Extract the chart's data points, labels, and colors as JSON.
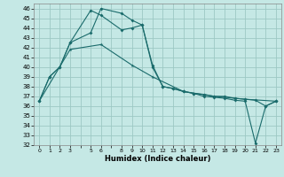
{
  "xlabel": "Humidex (Indice chaleur)",
  "background_color": "#c5e8e5",
  "grid_color": "#9dc8c4",
  "line_color": "#1a6b6b",
  "xlim": [
    -0.5,
    23.5
  ],
  "ylim": [
    32,
    46.5
  ],
  "yticks": [
    32,
    33,
    34,
    35,
    36,
    37,
    38,
    39,
    40,
    41,
    42,
    43,
    44,
    45,
    46
  ],
  "xtick_labels": [
    "0",
    "1",
    "2",
    "3",
    "",
    "5",
    "6",
    "",
    "8",
    "9",
    "10",
    "11",
    "12",
    "13",
    "14",
    "15",
    "16",
    "17",
    "18",
    "19",
    "20",
    "21",
    "22",
    "23"
  ],
  "line1_x": [
    0,
    1,
    2,
    3,
    5,
    6,
    8,
    9,
    10,
    11,
    12,
    13,
    14,
    15,
    16,
    17,
    18,
    19,
    20,
    21,
    22,
    23
  ],
  "line1_y": [
    36.5,
    39.0,
    40.0,
    42.5,
    43.5,
    46.0,
    45.5,
    44.8,
    44.3,
    40.0,
    38.0,
    37.8,
    37.5,
    37.3,
    37.0,
    36.9,
    36.8,
    36.6,
    36.5,
    32.2,
    36.0,
    36.5
  ],
  "line2_x": [
    0,
    1,
    2,
    3,
    5,
    6,
    8,
    9,
    10,
    11,
    12,
    13,
    14,
    15,
    16,
    17,
    18,
    19,
    20,
    21,
    22,
    23
  ],
  "line2_y": [
    36.5,
    39.0,
    40.0,
    42.5,
    45.8,
    45.3,
    43.8,
    44.0,
    44.3,
    40.2,
    38.0,
    37.8,
    37.5,
    37.3,
    37.2,
    37.0,
    37.0,
    36.8,
    36.7,
    36.6,
    36.0,
    36.5
  ],
  "line3_x": [
    0,
    3,
    6,
    9,
    11,
    14,
    17,
    20,
    23
  ],
  "line3_y": [
    36.5,
    41.8,
    42.3,
    40.2,
    39.0,
    37.5,
    37.0,
    36.7,
    36.5
  ]
}
